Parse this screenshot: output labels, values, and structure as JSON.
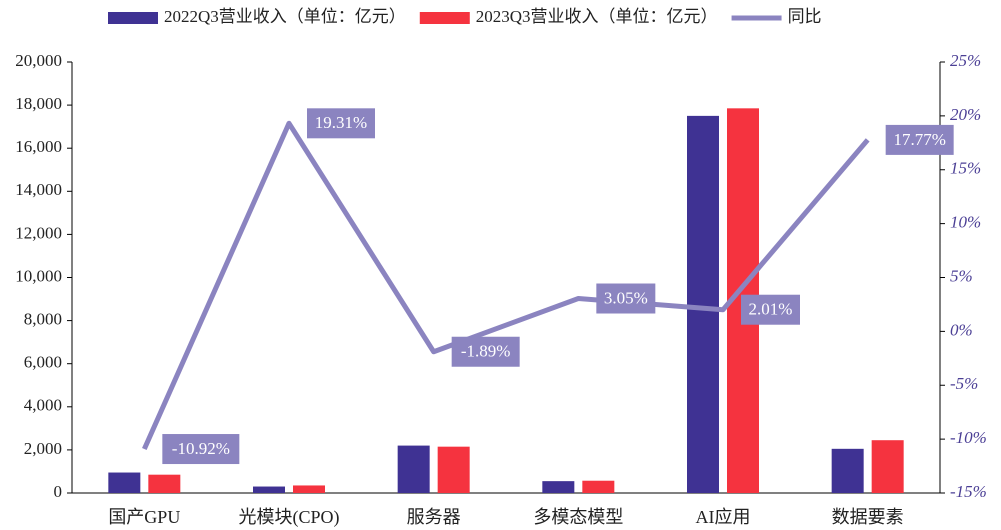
{
  "chart_data": {
    "type": "bar_line",
    "categories": [
      "国产GPU",
      "光模块(CPO)",
      "服务器",
      "多模态模型",
      "AI应用",
      "数据要素"
    ],
    "series": [
      {
        "name": "2022Q3营业收入（单位：亿元）",
        "color": "#3f3293",
        "values": [
          950,
          300,
          2200,
          550,
          17500,
          2050
        ]
      },
      {
        "name": "2023Q3营业收入（单位：亿元）",
        "color": "#f5333f",
        "values": [
          850,
          350,
          2150,
          570,
          17850,
          2450
        ]
      },
      {
        "name": "同比",
        "color": "#8b84c0",
        "axis": "y2",
        "type": "line",
        "values": [
          -10.92,
          19.31,
          -1.89,
          3.05,
          2.01,
          17.77
        ],
        "value_labels": [
          "-10.92%",
          "19.31%",
          "-1.89%",
          "3.05%",
          "2.01%",
          "17.77%"
        ]
      }
    ],
    "ylim": [
      0,
      20000
    ],
    "yticks": [
      0,
      {
        "value": 2000,
        "label": "2,000"
      },
      {
        "value": 4000,
        "label": "4,000"
      },
      {
        "value": 6000,
        "label": "6,000"
      },
      {
        "value": 8000,
        "label": "8,000"
      },
      {
        "value": 10000,
        "label": "10,000"
      },
      {
        "value": 12000,
        "label": "12,000"
      },
      {
        "value": 14000,
        "label": "14,000"
      },
      {
        "value": 16000,
        "label": "16,000"
      },
      {
        "value": 18000,
        "label": "18,000"
      },
      {
        "value": 20000,
        "label": "20,000"
      }
    ],
    "y2lim": [
      -15,
      25
    ],
    "y2ticks": [
      {
        "value": -15,
        "label": "-15%"
      },
      {
        "value": -10,
        "label": "-10%"
      },
      {
        "value": -5,
        "label": "-5%"
      },
      {
        "value": 0,
        "label": "0%"
      },
      {
        "value": 5,
        "label": "5%"
      },
      {
        "value": 10,
        "label": "10%"
      },
      {
        "value": 15,
        "label": "15%"
      },
      {
        "value": 20,
        "label": "20%"
      },
      {
        "value": 25,
        "label": "25%"
      }
    ],
    "legend": "top"
  }
}
